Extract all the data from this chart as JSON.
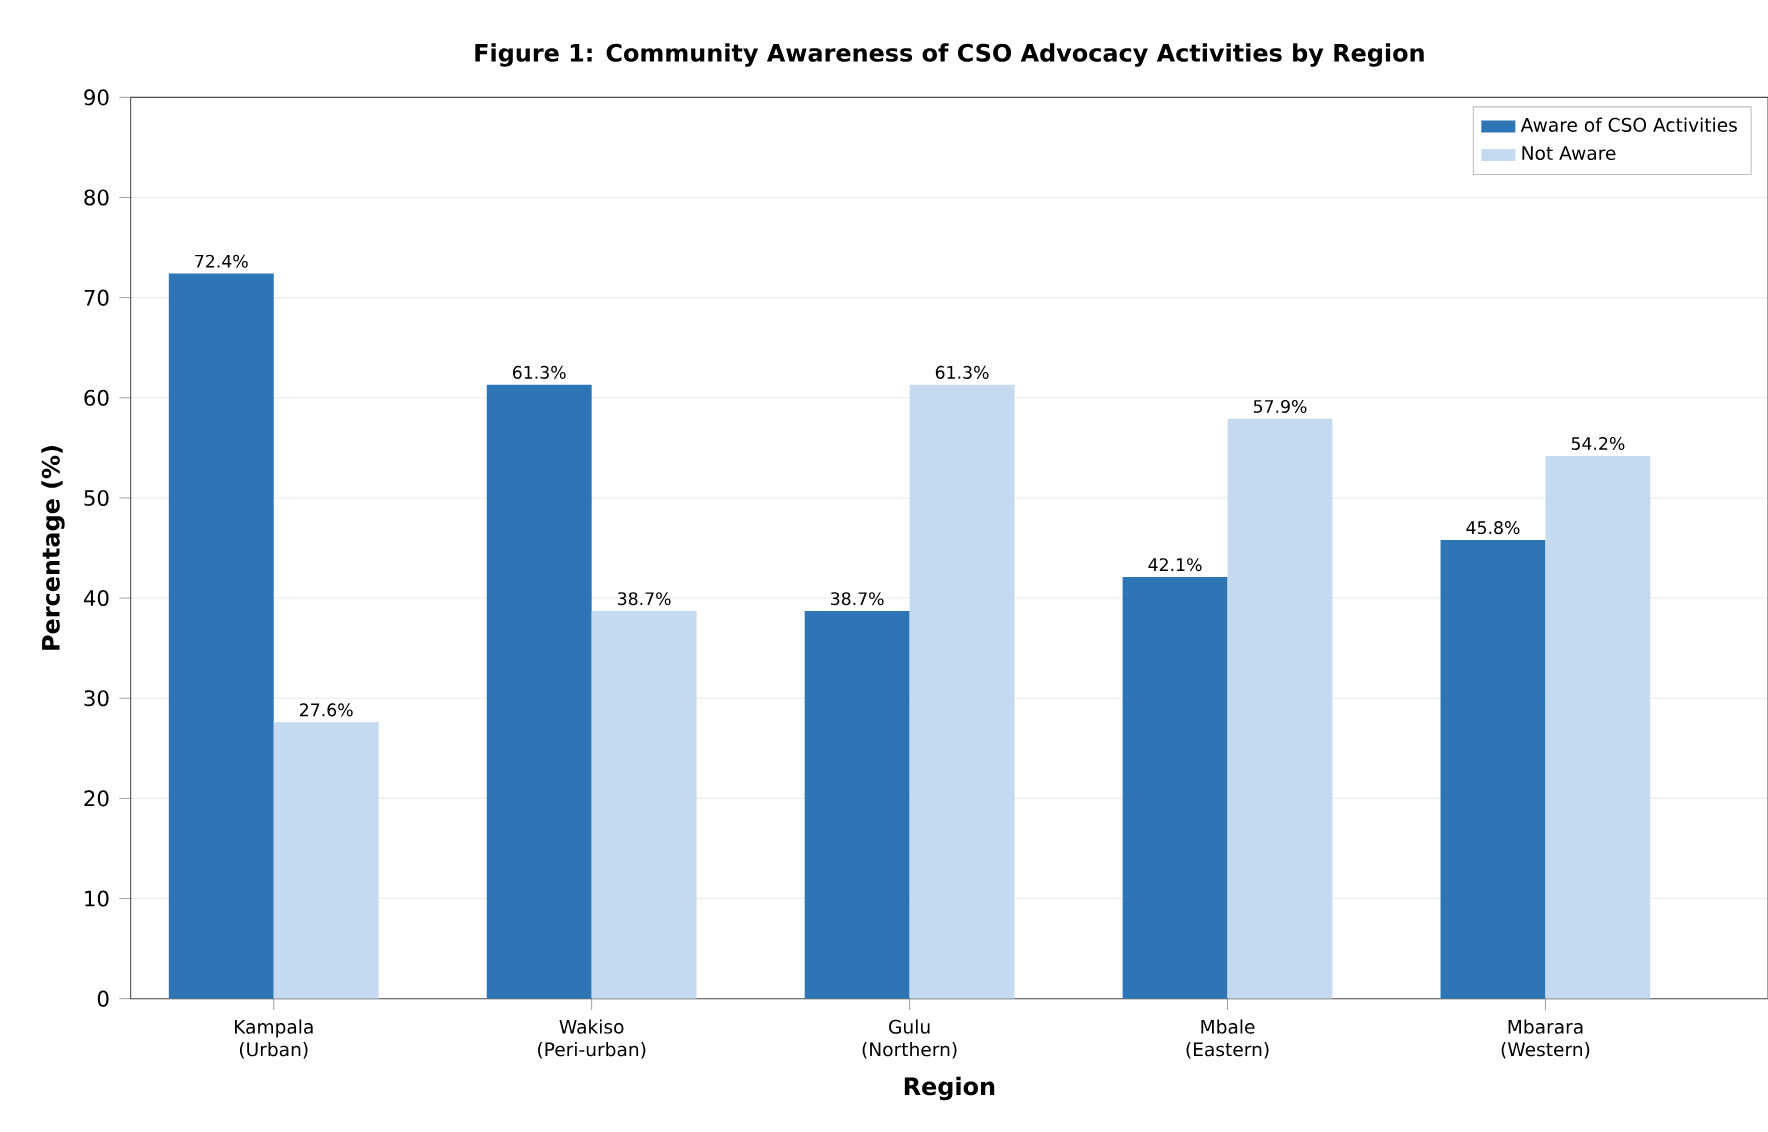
{
  "chart_data": {
    "type": "bar",
    "title": "Figure 1: Community Awareness of CSO Advocacy Activities by Region",
    "xlabel": "Region",
    "ylabel": "Percentage (%)",
    "categories": [
      "Kampala (Urban)",
      "Wakiso (Peri-urban)",
      "Gulu (Northern)",
      "Mbale (Eastern)",
      "Mbarara (Western)"
    ],
    "series": [
      {
        "name": "Aware of CSO Activities",
        "color": "#2e75b6",
        "values": [
          72.4,
          61.3,
          38.7,
          42.1,
          45.8
        ],
        "value_labels": [
          "72.4%",
          "61.3%",
          "38.7%",
          "42.1%",
          "45.8%"
        ]
      },
      {
        "name": "Not Aware",
        "color": "#c5d9f1",
        "values": [
          27.6,
          38.7,
          61.3,
          57.9,
          54.2
        ],
        "value_labels": [
          "27.6%",
          "38.7%",
          "61.3%",
          "57.9%",
          "54.2%"
        ]
      }
    ],
    "ylim": [
      0,
      90
    ],
    "yticks": [
      0,
      10,
      20,
      30,
      40,
      50,
      60,
      70,
      80,
      90
    ],
    "grid": "y",
    "legend": "top right"
  }
}
